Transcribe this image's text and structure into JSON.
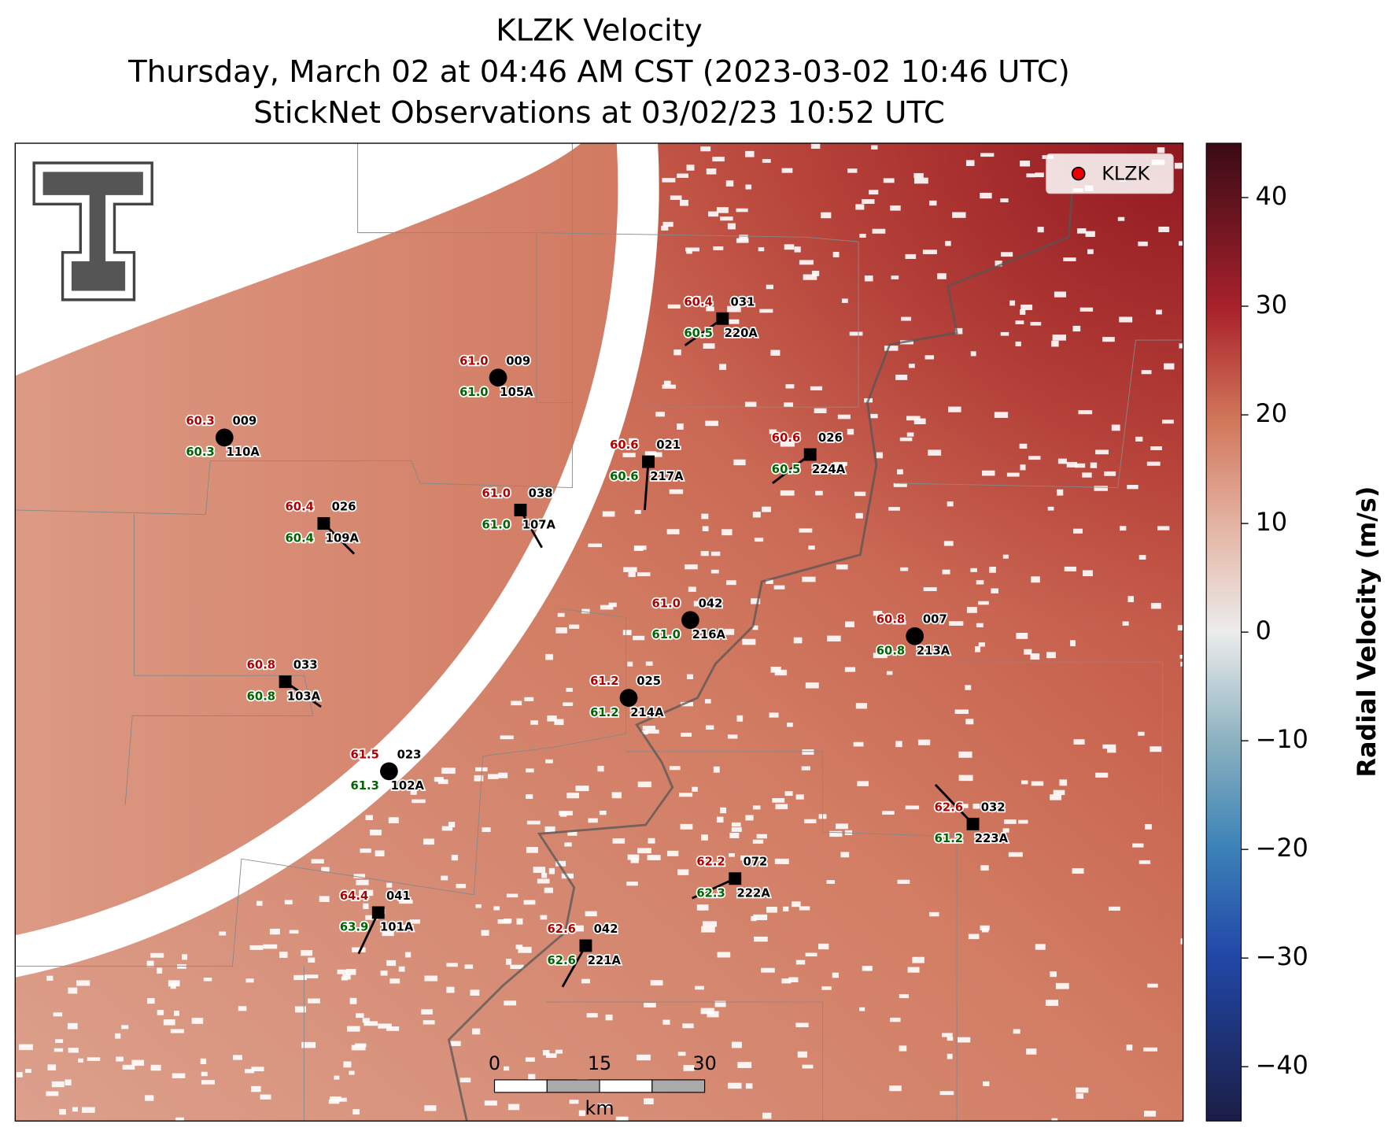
{
  "title": [
    "KLZK Velocity",
    "Thursday, March 02 at 04:46 AM CST (2023-03-02 10:46 UTC)",
    "StickNet Observations at 03/02/23 10:52 UTC"
  ],
  "legend": {
    "label": "KLZK"
  },
  "stations": [
    {
      "temp": "60.4",
      "dewpoint": "60.5",
      "code": "031",
      "id": "220A",
      "marker": "square"
    },
    {
      "temp": "61.0",
      "dewpoint": "61.0",
      "code": "009",
      "id": "105A",
      "marker": "circle"
    },
    {
      "temp": "60.3",
      "dewpoint": "60.3",
      "code": "009",
      "id": "110A",
      "marker": "circle"
    },
    {
      "temp": "60.6",
      "dewpoint": "60.6",
      "code": "021",
      "id": "217A",
      "marker": "square"
    },
    {
      "temp": "60.6",
      "dewpoint": "60.5",
      "code": "026",
      "id": "224A",
      "marker": "square"
    },
    {
      "temp": "61.0",
      "dewpoint": "61.0",
      "code": "038",
      "id": "107A",
      "marker": "square"
    },
    {
      "temp": "60.4",
      "dewpoint": "60.4",
      "code": "026",
      "id": "109A",
      "marker": "square"
    },
    {
      "temp": "61.0",
      "dewpoint": "61.0",
      "code": "042",
      "id": "216A",
      "marker": "circle"
    },
    {
      "temp": "60.8",
      "dewpoint": "60.8",
      "code": "007",
      "id": "213A",
      "marker": "circle"
    },
    {
      "temp": "60.8",
      "dewpoint": "60.8",
      "code": "033",
      "id": "103A",
      "marker": "square"
    },
    {
      "temp": "61.2",
      "dewpoint": "61.2",
      "code": "025",
      "id": "214A",
      "marker": "circle"
    },
    {
      "temp": "61.5",
      "dewpoint": "61.3",
      "code": "023",
      "id": "102A",
      "marker": "circle"
    },
    {
      "temp": "62.6",
      "dewpoint": "61.2",
      "code": "032",
      "id": "223A",
      "marker": "square"
    },
    {
      "temp": "62.2",
      "dewpoint": "62.3",
      "code": "072",
      "id": "222A",
      "marker": "square"
    },
    {
      "temp": "64.4",
      "dewpoint": "63.9",
      "code": "041",
      "id": "101A",
      "marker": "square"
    },
    {
      "temp": "62.6",
      "dewpoint": "62.6",
      "code": "042",
      "id": "221A",
      "marker": "square"
    }
  ],
  "colorbar": {
    "label": "Radial Velocity (m/s)",
    "lim": [
      -45,
      45
    ],
    "ticks": [
      {
        "value": -40,
        "label": "−40"
      },
      {
        "value": -30,
        "label": "−30"
      },
      {
        "value": -20,
        "label": "−20"
      },
      {
        "value": -10,
        "label": "−10"
      },
      0,
      10,
      20,
      30,
      40
    ]
  },
  "scale_bar": {
    "ticks": [
      0,
      15,
      30
    ],
    "unit": "km"
  }
}
